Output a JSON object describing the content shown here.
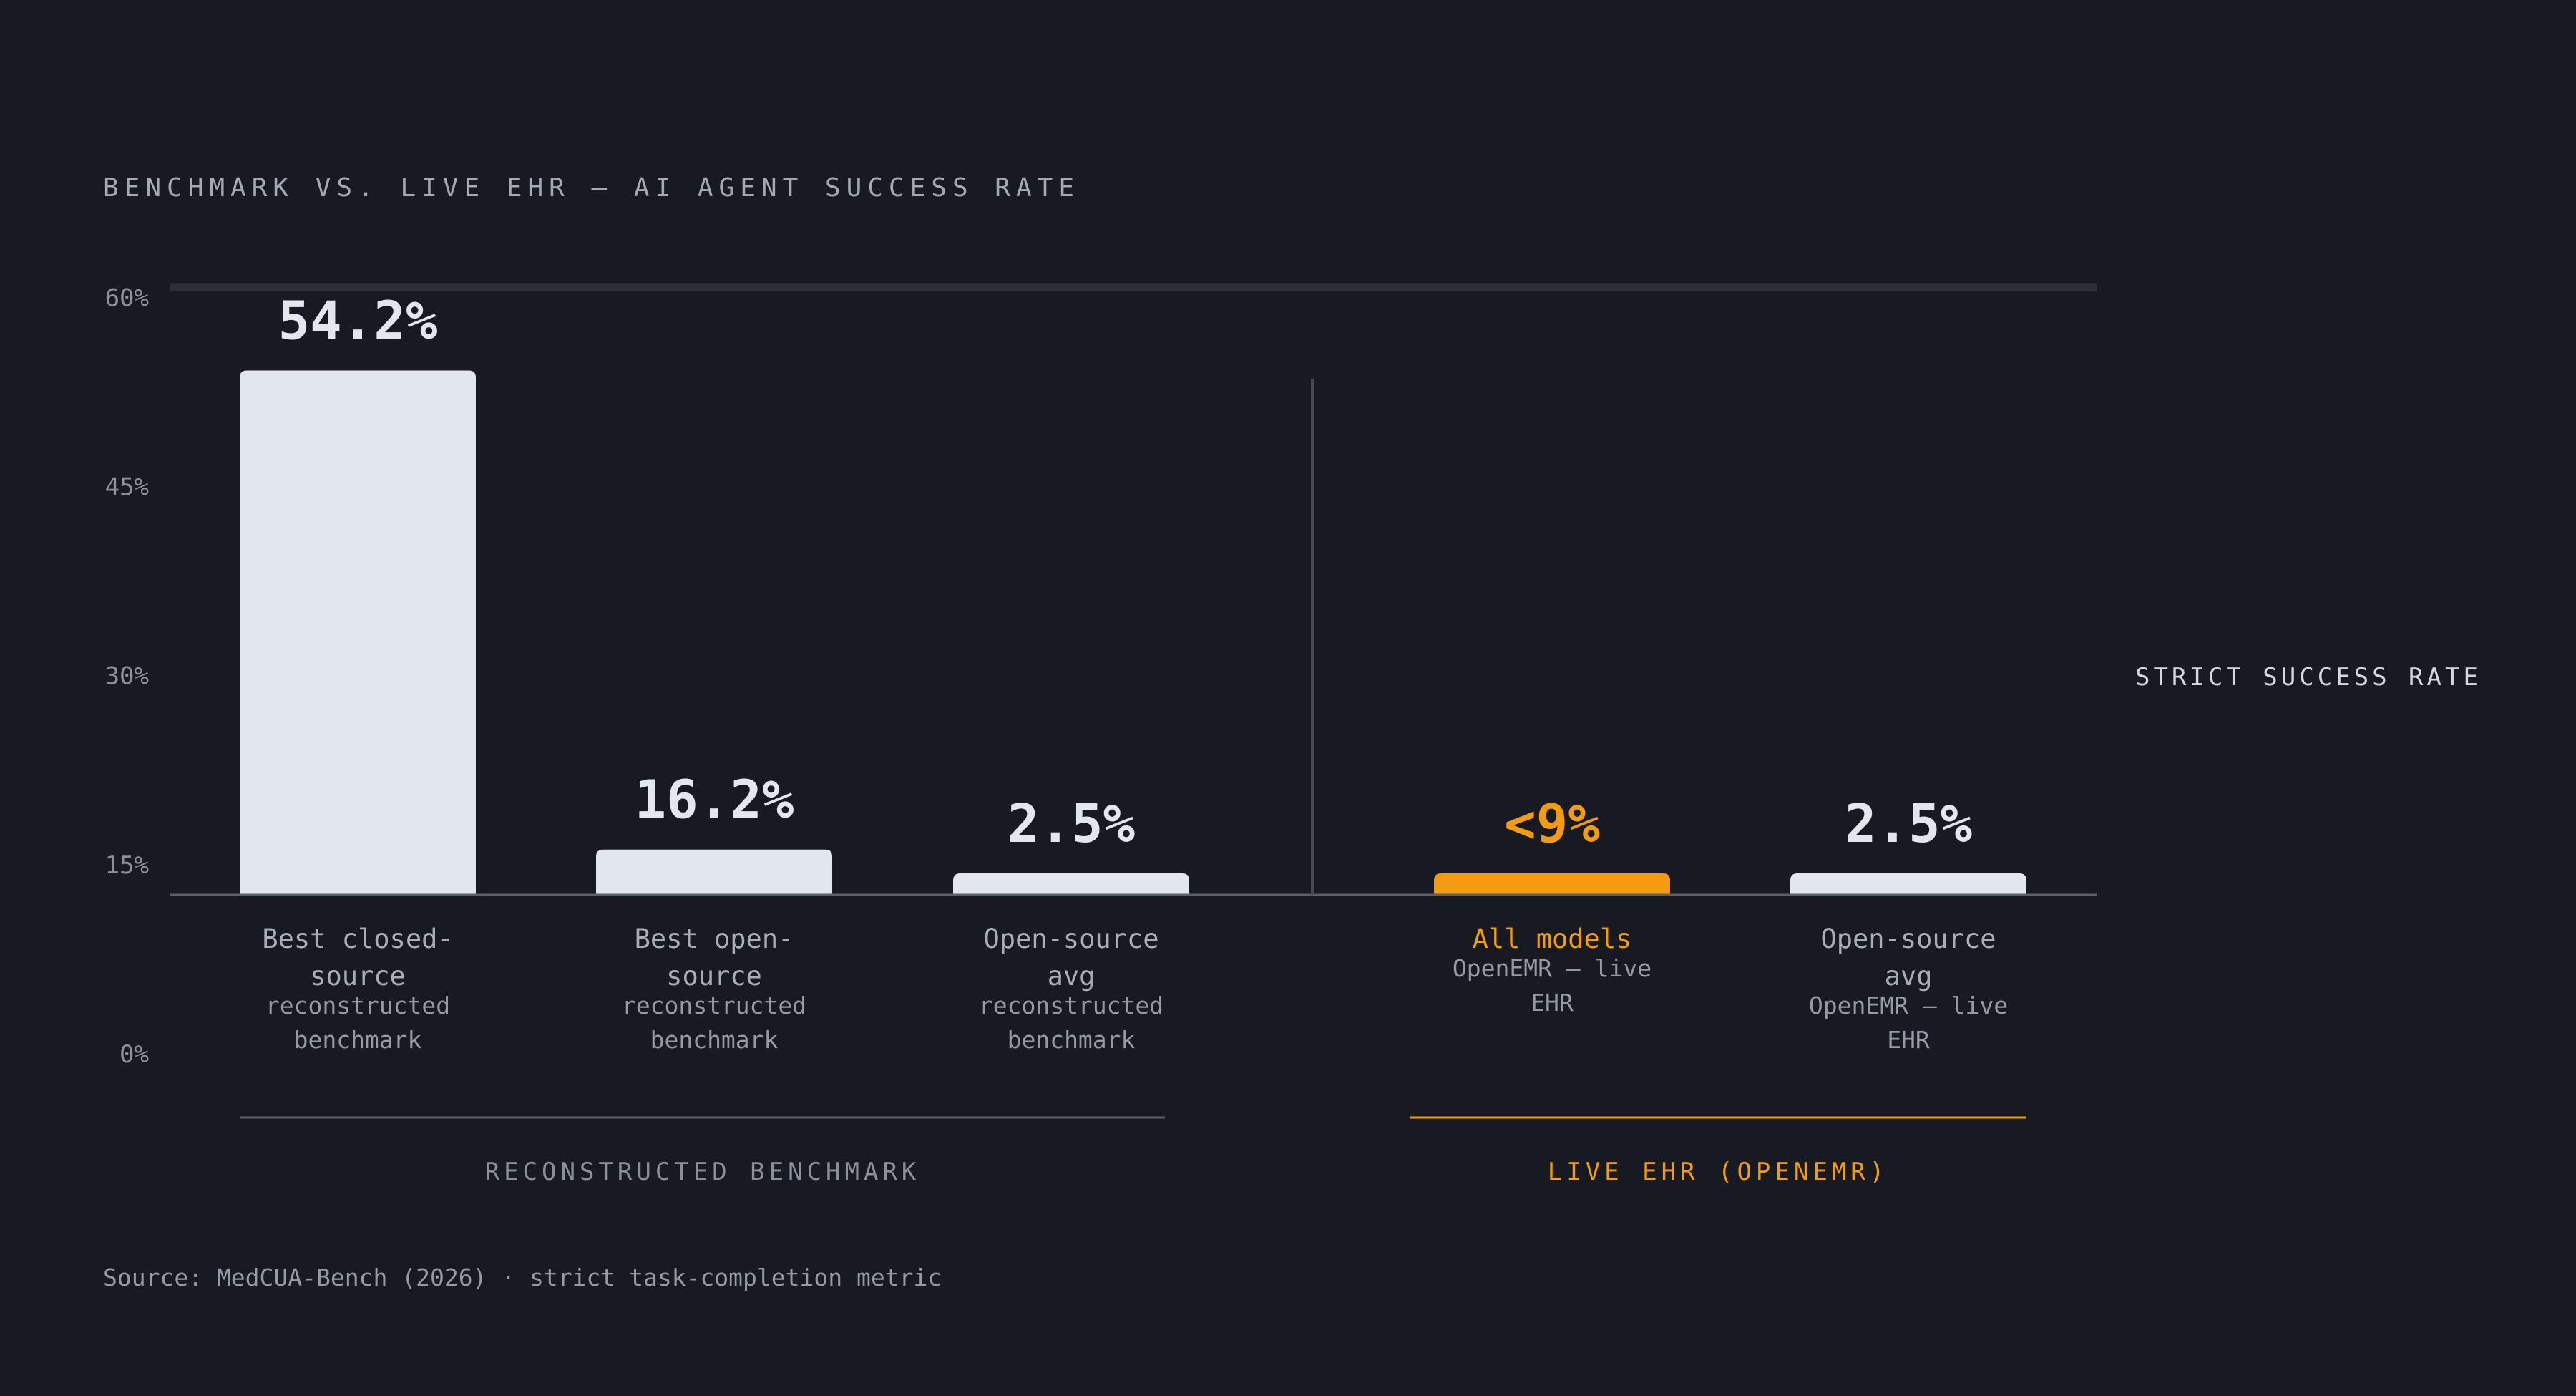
{
  "chart_data": {
    "type": "bar",
    "title": "BENCHMARK VS. LIVE EHR — AI AGENT SUCCESS RATE",
    "ylabel": "STRICT SUCCESS RATE",
    "ylim": [
      0,
      60
    ],
    "yticks": [
      "0%",
      "15%",
      "30%",
      "45%",
      "60%"
    ],
    "grid": false,
    "colors": {
      "neutral": "#e2e7ef",
      "accent": "#f39c12"
    },
    "categories": [
      {
        "label": "Best closed-source",
        "lines": [
          "Best closed-",
          "source"
        ],
        "sub": [
          "reconstructed",
          "benchmark"
        ]
      },
      {
        "label": "Best open-source",
        "lines": [
          "Best open-",
          "source"
        ],
        "sub": [
          "reconstructed",
          "benchmark"
        ]
      },
      {
        "label": "Open-source avg",
        "lines": [
          "Open-source",
          "avg"
        ],
        "sub": [
          "reconstructed",
          "benchmark"
        ]
      },
      {
        "label": "All models",
        "lines": [
          "All models"
        ],
        "sub": [
          "OpenEMR — live",
          "EHR"
        ]
      },
      {
        "label": "Open-source avg",
        "lines": [
          "Open-source",
          "avg"
        ],
        "sub": [
          "OpenEMR — live",
          "EHR"
        ]
      }
    ],
    "values": [
      54.2,
      16.2,
      2.5,
      9,
      2.5
    ],
    "value_labels": [
      "54.2%",
      "16.2%",
      "2.5%",
      "<9%",
      "2.5%"
    ],
    "highlight": [
      false,
      false,
      false,
      true,
      false
    ],
    "groups": [
      {
        "label": "RECONSTRUCTED BENCHMARK",
        "members": [
          0,
          1,
          2
        ]
      },
      {
        "label": "LIVE EHR (OPENEMR)",
        "members": [
          3,
          4
        ],
        "accent": true
      }
    ],
    "source": "Source: MedCUA-Bench (2026) · strict task-completion metric"
  }
}
